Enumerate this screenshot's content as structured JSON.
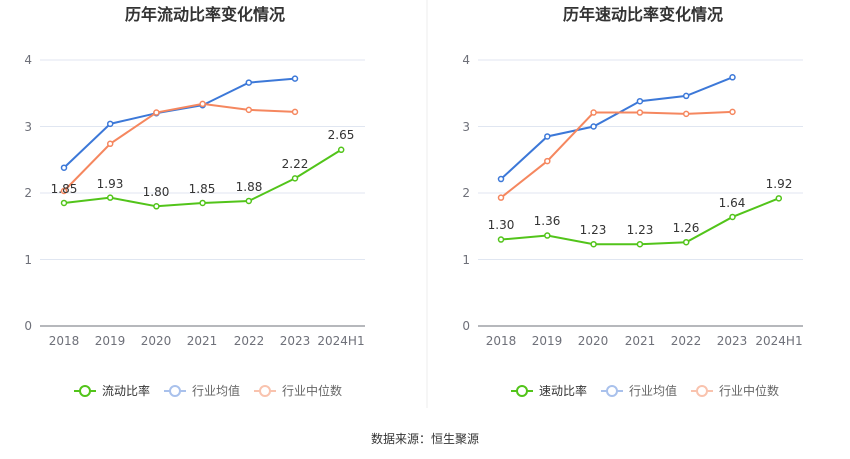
{
  "source_text": "数据来源：恒生聚源",
  "chart_data": [
    {
      "type": "line",
      "title": "历年流动比率变化情况",
      "categories": [
        "2018",
        "2019",
        "2020",
        "2021",
        "2022",
        "2023",
        "2024H1"
      ],
      "ylim": [
        0,
        4
      ],
      "yticks": [
        "0",
        "1",
        "2",
        "3",
        "4"
      ],
      "series": [
        {
          "name": "流动比率",
          "color": "#52c41a",
          "values": [
            1.85,
            1.93,
            1.8,
            1.85,
            1.88,
            2.22,
            2.65
          ],
          "labels": [
            "1.85",
            "1.93",
            "1.80",
            "1.85",
            "1.88",
            "2.22",
            "2.65"
          ]
        },
        {
          "name": "行业均值",
          "color": "#3c78d8",
          "values": [
            2.38,
            3.04,
            3.2,
            3.32,
            3.66,
            3.72,
            null
          ]
        },
        {
          "name": "行业中位数",
          "color": "#f5875f",
          "values": [
            2.03,
            2.74,
            3.21,
            3.34,
            3.25,
            3.22,
            null
          ]
        }
      ]
    },
    {
      "type": "line",
      "title": "历年速动比率变化情况",
      "categories": [
        "2018",
        "2019",
        "2020",
        "2021",
        "2022",
        "2023",
        "2024H1"
      ],
      "ylim": [
        0,
        4
      ],
      "yticks": [
        "0",
        "1",
        "2",
        "3",
        "4"
      ],
      "series": [
        {
          "name": "速动比率",
          "color": "#52c41a",
          "values": [
            1.3,
            1.36,
            1.23,
            1.23,
            1.26,
            1.64,
            1.92
          ],
          "labels": [
            "1.30",
            "1.36",
            "1.23",
            "1.23",
            "1.26",
            "1.64",
            "1.92"
          ]
        },
        {
          "name": "行业均值",
          "color": "#3c78d8",
          "values": [
            2.21,
            2.85,
            3.0,
            3.38,
            3.46,
            3.74,
            null
          ]
        },
        {
          "name": "行业中位数",
          "color": "#f5875f",
          "values": [
            1.93,
            2.48,
            3.21,
            3.21,
            3.19,
            3.22,
            null
          ]
        }
      ]
    }
  ]
}
